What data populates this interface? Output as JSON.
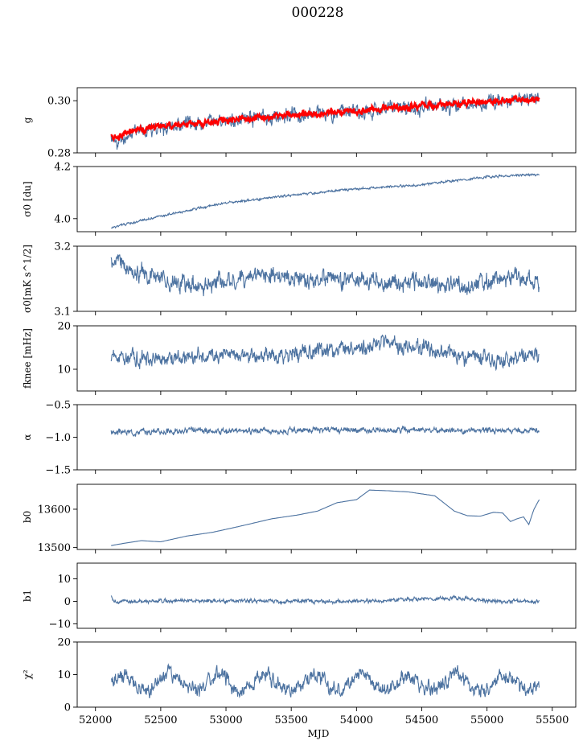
{
  "title": "000228",
  "chart_data": [
    {
      "type": "line",
      "ylabel": "g",
      "ylim": [
        0.28,
        0.305
      ],
      "yticks": [
        "0.28",
        "0.30"
      ],
      "ytick_values": [
        0.28,
        0.3
      ],
      "series": [
        {
          "color": "#4c72a0",
          "noise": 0.0018,
          "seed": 11,
          "x": [
            52120,
            52160,
            52300,
            52600,
            53000,
            53500,
            54000,
            54500,
            55000,
            55400
          ],
          "values": [
            0.2855,
            0.2835,
            0.2885,
            0.2905,
            0.2925,
            0.2945,
            0.296,
            0.2975,
            0.2995,
            0.3005
          ]
        },
        {
          "color": "#ff0000",
          "noise": 0.0009,
          "seed": 23,
          "x": [
            52120,
            52160,
            52300,
            52600,
            53000,
            53500,
            54000,
            54500,
            55000,
            55400
          ],
          "values": [
            0.286,
            0.2855,
            0.289,
            0.2908,
            0.2925,
            0.2945,
            0.2962,
            0.2978,
            0.2995,
            0.3005
          ]
        }
      ]
    },
    {
      "type": "line",
      "ylabel": "σ0 [du]",
      "ylim": [
        3.95,
        4.2
      ],
      "yticks": [
        "4.0",
        "4.2"
      ],
      "ytick_values": [
        4.0,
        4.2
      ],
      "series": [
        {
          "color": "#4c72a0",
          "noise": 0.003,
          "seed": 31,
          "x": [
            52120,
            52500,
            53000,
            53500,
            54000,
            54500,
            55000,
            55400
          ],
          "values": [
            3.965,
            4.01,
            4.06,
            4.09,
            4.115,
            4.13,
            4.16,
            4.17
          ]
        }
      ]
    },
    {
      "type": "line",
      "ylabel": "σ0[mK s^1/2]",
      "ylim": [
        3.1,
        3.2
      ],
      "yticks": [
        "3.1",
        "3.2"
      ],
      "ytick_values": [
        3.1,
        3.2
      ],
      "series": [
        {
          "color": "#4c72a0",
          "noise": 0.009,
          "seed": 47,
          "x": [
            52120,
            52180,
            52300,
            52800,
            53300,
            53800,
            54300,
            54800,
            55300,
            55400
          ],
          "values": [
            3.17,
            3.18,
            3.16,
            3.14,
            3.155,
            3.15,
            3.145,
            3.14,
            3.15,
            3.14
          ]
        }
      ]
    },
    {
      "type": "line",
      "ylabel": "fknee [mHz]",
      "ylim": [
        5,
        20
      ],
      "yticks": [
        "10",
        "20"
      ],
      "ytick_values": [
        10,
        20
      ],
      "series": [
        {
          "color": "#4c72a0",
          "noise": 1.2,
          "seed": 59,
          "x": [
            52120,
            52500,
            53000,
            53500,
            54000,
            54200,
            54500,
            54900,
            55200,
            55400
          ],
          "values": [
            13,
            12.5,
            13,
            13.5,
            15,
            16,
            15,
            12.5,
            12,
            13.5
          ]
        }
      ]
    },
    {
      "type": "line",
      "ylabel": "α",
      "ylim": [
        -1.5,
        -0.5
      ],
      "yticks": [
        "−1.5",
        "−1.0",
        "−0.5"
      ],
      "ytick_values": [
        -1.5,
        -1.0,
        -0.5
      ],
      "series": [
        {
          "color": "#4c72a0",
          "noise": 0.03,
          "seed": 67,
          "x": [
            52120,
            53000,
            54000,
            55000,
            55400
          ],
          "values": [
            -0.92,
            -0.9,
            -0.89,
            -0.9,
            -0.89
          ]
        }
      ]
    },
    {
      "type": "line",
      "ylabel": "b0",
      "ylim": [
        13495,
        13665
      ],
      "yticks": [
        "13500",
        "13600"
      ],
      "ytick_values": [
        13500,
        13600
      ],
      "series": [
        {
          "color": "#4c72a0",
          "noise": 0,
          "seed": 0,
          "x": [
            52120,
            52200,
            52350,
            52500,
            52700,
            52900,
            53100,
            53350,
            53550,
            53700,
            53850,
            54000,
            54100,
            54250,
            54400,
            54600,
            54750,
            54850,
            54950,
            55050,
            55120,
            55180,
            55230,
            55280,
            55320,
            55360,
            55400
          ],
          "values": [
            13505,
            13510,
            13518,
            13515,
            13530,
            13540,
            13555,
            13575,
            13585,
            13595,
            13617,
            13625,
            13650,
            13648,
            13645,
            13635,
            13595,
            13583,
            13582,
            13592,
            13590,
            13568,
            13575,
            13580,
            13560,
            13600,
            13625
          ]
        }
      ]
    },
    {
      "type": "line",
      "ylabel": "b1",
      "ylim": [
        -12,
        17
      ],
      "yticks": [
        "−10",
        "0",
        "10"
      ],
      "ytick_values": [
        -10,
        0,
        10
      ],
      "series": [
        {
          "color": "#4c72a0",
          "noise": 0.6,
          "seed": 83,
          "x": [
            52120,
            52140,
            52200,
            53000,
            54000,
            54800,
            55000,
            55400
          ],
          "values": [
            3,
            0,
            0,
            0.2,
            0,
            1.5,
            0,
            0
          ]
        }
      ]
    },
    {
      "type": "line",
      "ylabel": "χ²",
      "ylim": [
        0,
        20
      ],
      "yticks": [
        "0",
        "10",
        "20"
      ],
      "ytick_values": [
        0,
        10,
        20
      ],
      "xlabel": "MJD",
      "xticks": [
        "52000",
        "52500",
        "53000",
        "53500",
        "54000",
        "54500",
        "55000",
        "55500"
      ],
      "xtick_values": [
        52000,
        52500,
        53000,
        53500,
        54000,
        54500,
        55000,
        55500
      ],
      "series": [
        {
          "color": "#4c72a0",
          "noise": 1.6,
          "seed": 97,
          "osc_amp": 2.5,
          "osc_period": 365,
          "x": [
            52120,
            55400
          ],
          "values": [
            7.5,
            7.5
          ]
        }
      ]
    }
  ]
}
